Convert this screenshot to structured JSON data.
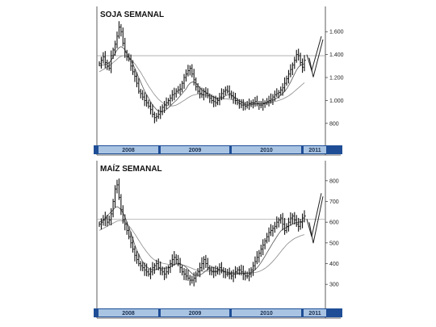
{
  "colors": {
    "year_band": "#a9c4e3",
    "year_band_dark": "#1f4e96",
    "bars": "#111111",
    "ma": "#8a8a8a",
    "ref": "#9a9a9a"
  },
  "chart_data": [
    {
      "type": "bar",
      "subtype": "weekly-ohlc",
      "title": "SOJA SEMANAL",
      "ylim": [
        700,
        1700
      ],
      "yticks": [
        800,
        1000,
        1200,
        1400,
        1600
      ],
      "ytick_labels": [
        "800",
        "1.000",
        "1.200",
        "1.400",
        "1.600"
      ],
      "reference_line": 1390,
      "years": [
        "2008",
        "2009",
        "2010",
        "2011"
      ],
      "close": [
        1320,
        1350,
        1380,
        1330,
        1300,
        1280,
        1390,
        1440,
        1490,
        1560,
        1640,
        1600,
        1500,
        1420,
        1380,
        1360,
        1300,
        1250,
        1210,
        1150,
        1080,
        1060,
        1030,
        1000,
        980,
        950,
        920,
        880,
        850,
        860,
        880,
        900,
        940,
        960,
        980,
        1000,
        1020,
        1050,
        1060,
        1080,
        1090,
        1100,
        1150,
        1200,
        1230,
        1260,
        1280,
        1230,
        1180,
        1120,
        1080,
        1060,
        1050,
        1080,
        1060,
        1040,
        1020,
        1000,
        990,
        980,
        1000,
        1030,
        1060,
        1080,
        1090,
        1080,
        1060,
        1040,
        1020,
        1000,
        980,
        970,
        960,
        960,
        950,
        960,
        970,
        980,
        980,
        990,
        970,
        960,
        960,
        970,
        980,
        990,
        1000,
        1010,
        1030,
        1050,
        1060,
        1070,
        1090,
        1110,
        1150,
        1190,
        1230,
        1270,
        1310,
        1350,
        1400,
        1390,
        1330,
        1290,
        1350
      ],
      "ma_fast": [
        1300,
        1305,
        1310,
        1315,
        1320,
        1330,
        1350,
        1380,
        1410,
        1440,
        1460,
        1470,
        1460,
        1440,
        1410,
        1380,
        1350,
        1320,
        1280,
        1240,
        1200,
        1160,
        1120,
        1080,
        1050,
        1020,
        990,
        960,
        940,
        920,
        910,
        905,
        905,
        910,
        920,
        935,
        950,
        970,
        985,
        1000,
        1020,
        1040,
        1060,
        1080,
        1100,
        1130,
        1150,
        1160,
        1160,
        1150,
        1130,
        1110,
        1090,
        1080,
        1070,
        1060,
        1050,
        1040,
        1030,
        1020,
        1010,
        1010,
        1020,
        1030,
        1040,
        1050,
        1050,
        1045,
        1035,
        1025,
        1010,
        995,
        985,
        975,
        965,
        960,
        960,
        962,
        965,
        968,
        970,
        972,
        974,
        976,
        978,
        980,
        985,
        992,
        1000,
        1010,
        1020,
        1032,
        1045,
        1060,
        1080,
        1100,
        1130,
        1160,
        1195,
        1230,
        1265,
        1290,
        1305,
        1315,
        1320
      ],
      "ma_slow": [
        1250,
        1260,
        1270,
        1280,
        1290,
        1300,
        1315,
        1330,
        1345,
        1360,
        1375,
        1385,
        1390,
        1390,
        1385,
        1375,
        1360,
        1340,
        1320,
        1295,
        1270,
        1245,
        1215,
        1185,
        1155,
        1125,
        1100,
        1075,
        1050,
        1030,
        1010,
        995,
        980,
        970,
        960,
        955,
        952,
        952,
        955,
        960,
        968,
        978,
        990,
        1000,
        1012,
        1024,
        1034,
        1042,
        1048,
        1052,
        1054,
        1054,
        1052,
        1050,
        1046,
        1042,
        1038,
        1034,
        1030,
        1026,
        1022,
        1018,
        1016,
        1015,
        1014,
        1012,
        1010,
        1008,
        1005,
        1002,
        998,
        994,
        990,
        986,
        982,
        979,
        977,
        975,
        974,
        973,
        972,
        972,
        972,
        973,
        974,
        976,
        979,
        982,
        986,
        990,
        995,
        1000,
        1006,
        1013,
        1021,
        1030,
        1040,
        1052,
        1065,
        1080,
        1095,
        1110,
        1125,
        1140,
        1155
      ],
      "projection": [
        [
          1400,
          1260,
          1560
        ]
      ]
    },
    {
      "type": "bar",
      "subtype": "weekly-ohlc",
      "title": "MAÍZ SEMANAL",
      "ylim": [
        250,
        850
      ],
      "yticks": [
        300,
        400,
        500,
        600,
        700,
        800
      ],
      "ytick_labels": [
        "300",
        "400",
        "500",
        "600",
        "700",
        "800"
      ],
      "reference_line": 615,
      "years": [
        "2008",
        "2009",
        "2010",
        "2011"
      ],
      "close": [
        590,
        600,
        610,
        620,
        600,
        610,
        640,
        700,
        760,
        780,
        720,
        660,
        610,
        590,
        560,
        530,
        500,
        470,
        440,
        420,
        400,
        390,
        380,
        370,
        360,
        350,
        360,
        380,
        390,
        400,
        380,
        370,
        360,
        350,
        360,
        380,
        400,
        420,
        430,
        420,
        400,
        380,
        360,
        350,
        340,
        330,
        320,
        320,
        330,
        350,
        360,
        380,
        400,
        420,
        400,
        380,
        370,
        360,
        360,
        360,
        370,
        380,
        370,
        360,
        350,
        350,
        350,
        340,
        350,
        360,
        370,
        370,
        360,
        350,
        340,
        340,
        350,
        370,
        390,
        410,
        430,
        450,
        470,
        490,
        510,
        530,
        550,
        560,
        570,
        580,
        600,
        610,
        620,
        590,
        560,
        580,
        600,
        620,
        630,
        610,
        590,
        580,
        600,
        620,
        630
      ],
      "ma_fast": [
        600,
        605,
        610,
        620,
        630,
        640,
        650,
        660,
        670,
        675,
        670,
        660,
        645,
        625,
        600,
        575,
        550,
        520,
        490,
        465,
        445,
        425,
        410,
        395,
        385,
        378,
        372,
        370,
        370,
        372,
        375,
        377,
        378,
        378,
        378,
        380,
        385,
        390,
        395,
        400,
        402,
        400,
        395,
        390,
        382,
        372,
        362,
        352,
        345,
        342,
        342,
        345,
        350,
        357,
        365,
        372,
        377,
        380,
        380,
        378,
        375,
        372,
        368,
        364,
        360,
        357,
        354,
        352,
        351,
        350,
        351,
        352,
        353,
        354,
        354,
        354,
        355,
        358,
        363,
        370,
        380,
        392,
        405,
        420,
        436,
        452,
        468,
        484,
        500,
        515,
        530,
        545,
        557,
        565,
        570,
        575,
        580,
        585,
        590,
        595,
        598,
        600,
        602,
        604,
        606
      ],
      "ma_slow": [
        560,
        565,
        570,
        575,
        580,
        585,
        590,
        595,
        600,
        605,
        608,
        608,
        605,
        600,
        592,
        582,
        570,
        557,
        543,
        528,
        513,
        498,
        483,
        470,
        457,
        445,
        434,
        425,
        418,
        412,
        408,
        405,
        402,
        400,
        398,
        397,
        396,
        396,
        396,
        397,
        397,
        396,
        394,
        392,
        389,
        385,
        381,
        377,
        373,
        370,
        367,
        365,
        364,
        363,
        363,
        363,
        363,
        364,
        364,
        364,
        364,
        363,
        362,
        361,
        360,
        359,
        358,
        357,
        356,
        356,
        355,
        355,
        354,
        354,
        354,
        354,
        354,
        355,
        356,
        357,
        359,
        362,
        366,
        371,
        377,
        384,
        392,
        401,
        411,
        422,
        433,
        445,
        457,
        469,
        480,
        491,
        500,
        508,
        515,
        521,
        526,
        530,
        534,
        537,
        540
      ],
      "projection": [
        [
          615,
          530,
          740
        ]
      ]
    }
  ]
}
